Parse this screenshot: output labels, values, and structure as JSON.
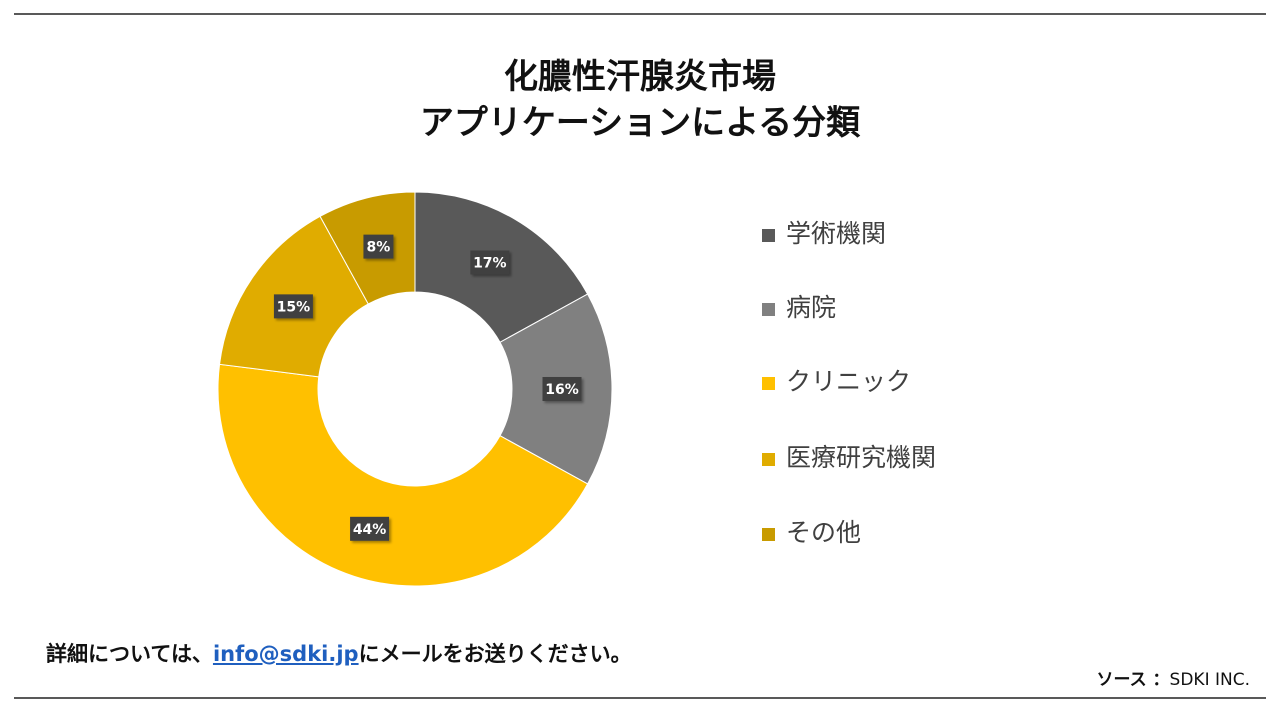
{
  "title_line1": "化膿性汗腺炎市場",
  "title_line2": "アプリケーションによる分類",
  "footer": {
    "prefix": "詳細については、",
    "email": "info@sdki.jp",
    "suffix": "にメールをお送りください。"
  },
  "source": {
    "label": "ソース ：",
    "value": "SDKI INC."
  },
  "chart_data": {
    "type": "pie",
    "donut": true,
    "legend_position": "right",
    "categories": [
      "学術機関",
      "病院",
      "クリニック",
      "医療研究機関",
      "その他"
    ],
    "values": [
      17,
      16,
      44,
      15,
      8
    ],
    "value_labels": [
      "17%",
      "16%",
      "44%",
      "15%",
      "8%"
    ],
    "colors": [
      "#595959",
      "#808080",
      "#ffc000",
      "#e0ac00",
      "#c89b00"
    ]
  }
}
